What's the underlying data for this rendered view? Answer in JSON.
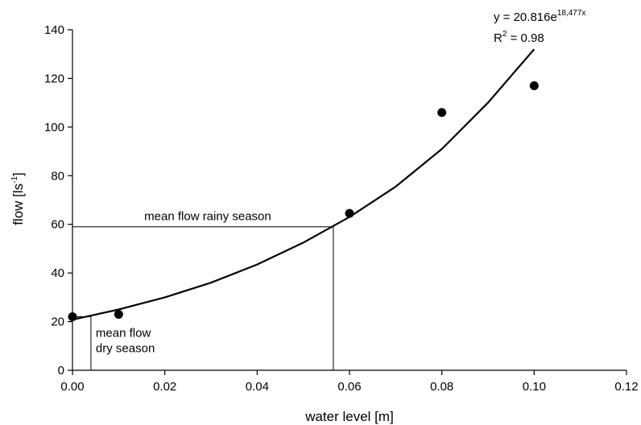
{
  "chart_data": {
    "type": "scatter",
    "xlabel": "water level [m]",
    "ylabel": {
      "base": "flow [ls",
      "sup": "-1",
      "close": "]"
    },
    "xlim": [
      0,
      0.12
    ],
    "ylim": [
      0,
      140
    ],
    "x_ticks": [
      "0.00",
      "0.02",
      "0.04",
      "0.06",
      "0.08",
      "0.10",
      "0.12"
    ],
    "y_ticks": [
      "0",
      "20",
      "40",
      "60",
      "80",
      "100",
      "120",
      "140"
    ],
    "grid": false,
    "series": [
      {
        "type": "scatter",
        "x": [
          0.0,
          0.01,
          0.06,
          0.08,
          0.1
        ],
        "y": [
          22,
          23,
          64.5,
          106,
          117
        ]
      },
      {
        "type": "line",
        "x": [
          0.0,
          0.01,
          0.02,
          0.03,
          0.04,
          0.05,
          0.06,
          0.07,
          0.08,
          0.09,
          0.1
        ],
        "y": [
          20.8,
          25,
          30,
          36,
          43.5,
          52.5,
          63,
          75.5,
          91,
          110,
          132
        ]
      }
    ],
    "equation": {
      "prefix": "y = 20.816e",
      "sup": "18,477x"
    },
    "r2": {
      "prefix": "R",
      "sup": "2",
      "suffix": " = 0.98"
    },
    "annotations": {
      "rainy": {
        "label": "mean flow rainy season",
        "x": 0.0565,
        "y": 59
      },
      "dry": {
        "line1": "mean flow",
        "line2": "dry season",
        "x": 0.004,
        "y": 22
      }
    }
  }
}
